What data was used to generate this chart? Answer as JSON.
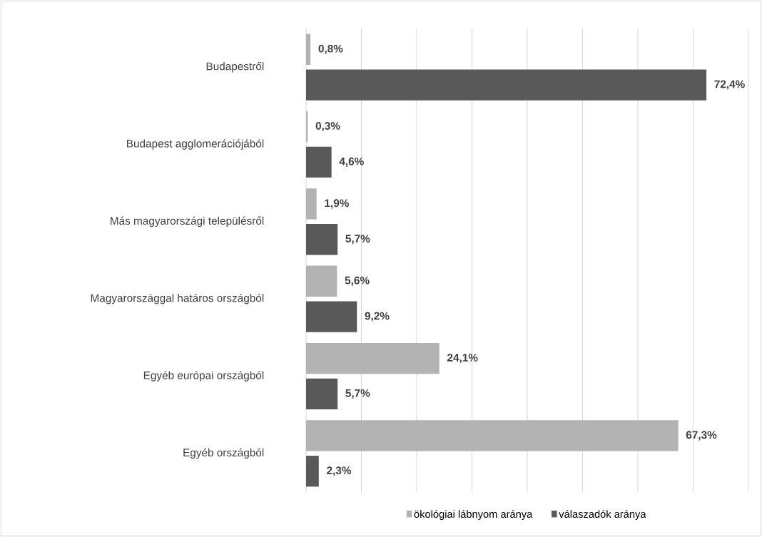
{
  "chart_data": {
    "type": "bar",
    "orientation": "horizontal",
    "categories": [
      "Budapestről",
      "Budapest agglomerációjából",
      "Más magyarországi településről",
      "Magyarországgal határos országból",
      "Egyéb európai országból",
      "Egyéb országból"
    ],
    "series": [
      {
        "name": "ökológiai lábnyom aránya",
        "color": "#b3b3b3",
        "values": [
          0.8,
          0.3,
          1.9,
          5.6,
          24.1,
          67.3
        ],
        "value_labels": [
          "0,8%",
          "0,3%",
          "1,9%",
          "5,6%",
          "24,1%",
          "67,3%"
        ]
      },
      {
        "name": "válaszadók aránya",
        "color": "#595959",
        "values": [
          72.4,
          4.6,
          5.7,
          9.2,
          5.7,
          2.3
        ],
        "value_labels": [
          "72,4%",
          "4,6%",
          "5,7%",
          "9,2%",
          "5,7%",
          "2,3%"
        ]
      }
    ],
    "xlim": [
      0,
      80
    ],
    "xticks": [
      {
        "value": 0,
        "label": null
      },
      {
        "value": 10,
        "label": null
      },
      {
        "value": 20,
        "label": null
      },
      {
        "value": 30,
        "label": null
      },
      {
        "value": 40,
        "label": null
      },
      {
        "value": 50,
        "label": null
      },
      {
        "value": 60,
        "label": null
      },
      {
        "value": 70,
        "label": null
      },
      {
        "value": 80,
        "label": null
      }
    ],
    "grid": "x",
    "legend": "bottom",
    "tick_labels": "y"
  }
}
